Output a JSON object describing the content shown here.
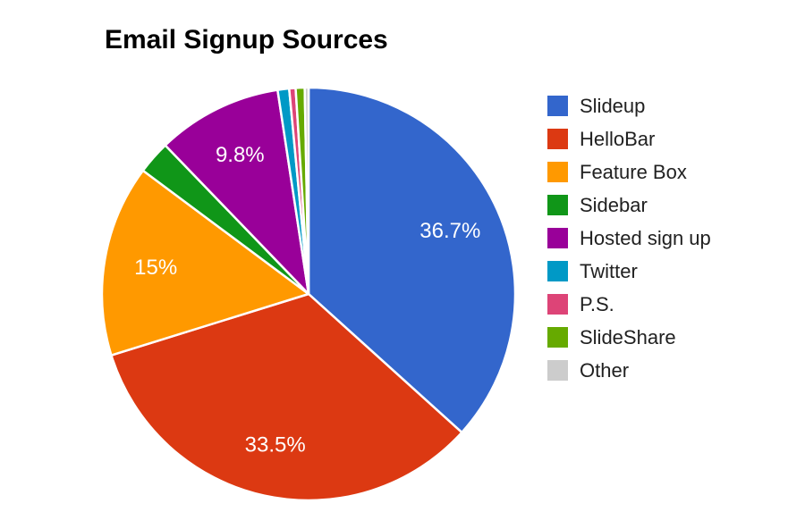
{
  "chart_data": {
    "type": "pie",
    "title": "Email Signup Sources",
    "unit": "percent",
    "start_angle_deg": 0,
    "direction": "clockwise",
    "legend_position": "right",
    "background_color": "#ffffff",
    "title_color": "#000000",
    "legend_text_color": "#212121",
    "label_color": "#ffffff",
    "slice_border_color": "#ffffff",
    "slices": [
      {
        "label": "Slideup",
        "value": 36.7,
        "display_label": "36.7%",
        "color": "#3366CC"
      },
      {
        "label": "HelloBar",
        "value": 33.5,
        "display_label": "33.5%",
        "color": "#DC3912"
      },
      {
        "label": "Feature Box",
        "value": 15,
        "display_label": "15%",
        "color": "#FF9900"
      },
      {
        "label": "Sidebar",
        "value": 2.6,
        "display_label": "",
        "color": "#109618"
      },
      {
        "label": "Hosted sign up",
        "value": 9.8,
        "display_label": "9.8%",
        "color": "#990099"
      },
      {
        "label": "Twitter",
        "value": 0.9,
        "display_label": "",
        "color": "#0099C6"
      },
      {
        "label": "P.S.",
        "value": 0.5,
        "display_label": "",
        "color": "#DD4477"
      },
      {
        "label": "SlideShare",
        "value": 0.7,
        "display_label": "",
        "color": "#66AA00"
      },
      {
        "label": "Other",
        "value": 0.3,
        "display_label": "",
        "color": "#CCCCCC"
      }
    ]
  }
}
